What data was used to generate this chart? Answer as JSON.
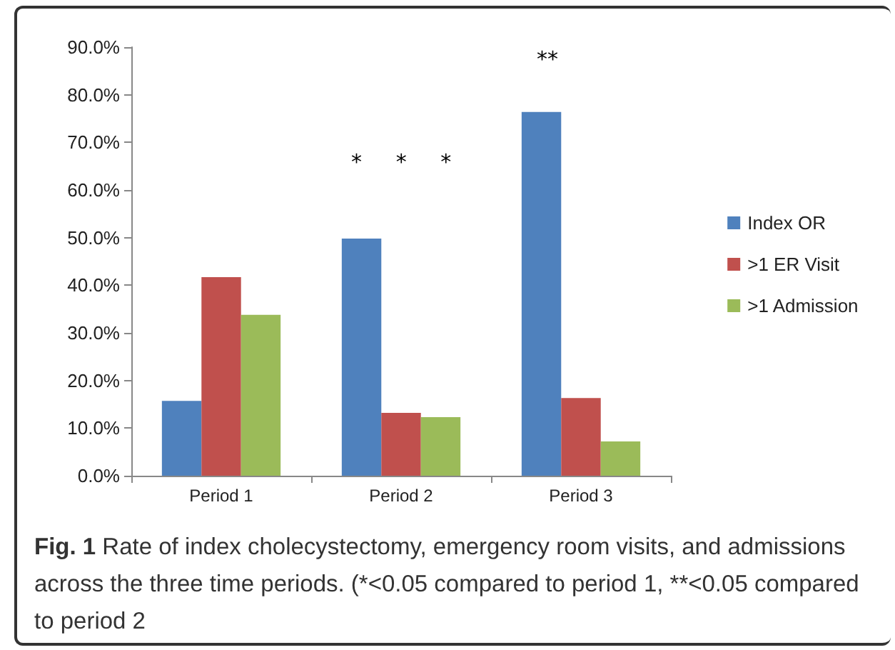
{
  "chart_data": {
    "type": "bar",
    "categories": [
      "Period 1",
      "Period 2",
      "Period 3"
    ],
    "series": [
      {
        "name": "Index OR",
        "color": "#4f81bd",
        "values": [
          15.7,
          49.8,
          76.4
        ]
      },
      {
        "name": ">1 ER Visit",
        "color": "#c0504d",
        "values": [
          41.7,
          13.2,
          16.3
        ]
      },
      {
        "name": ">1 Admission",
        "color": "#9bbb59",
        "values": [
          33.8,
          12.3,
          7.2
        ]
      }
    ],
    "ylim": [
      0,
      90
    ],
    "yticks": [
      {
        "value": 0,
        "label": "0.0%"
      },
      {
        "value": 10,
        "label": "10.0%"
      },
      {
        "value": 20,
        "label": "20.0%"
      },
      {
        "value": 30,
        "label": "30.0%"
      },
      {
        "value": 40,
        "label": "40.0%"
      },
      {
        "value": 50,
        "label": "50.0%"
      },
      {
        "value": 60,
        "label": "60.0%"
      },
      {
        "value": 70,
        "label": "70.0%"
      },
      {
        "value": 80,
        "label": "80.0%"
      },
      {
        "value": 90,
        "label": "90.0%"
      }
    ],
    "grid": false,
    "legend": "right",
    "annotations": [
      "*     *     *",
      "**"
    ],
    "title": "Fig. 1 Rate of index cholecystectomy, emergency room visits, and admissions across the three time periods. (*<0.05 compared to period 1, **<0.05 compared to period 2"
  }
}
